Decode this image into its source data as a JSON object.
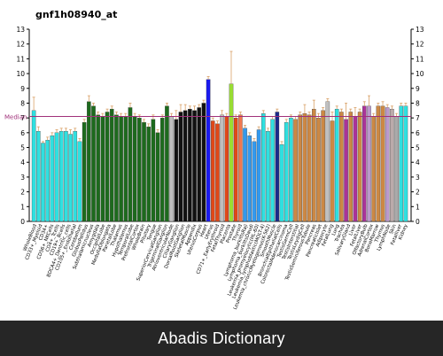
{
  "footer": {
    "text": "Abadis Dictionary"
  },
  "chart_data": {
    "type": "bar",
    "title": "gnf1h08940_at",
    "ylim": [
      0,
      13
    ],
    "yticks": [
      0,
      1,
      2,
      3,
      4,
      5,
      6,
      7,
      8,
      9,
      10,
      11,
      12,
      13
    ],
    "median": {
      "label": "Median",
      "value": 7.1,
      "color": "#a0307a"
    },
    "grid": false,
    "legend": "none",
    "categories": [
      "WholeBlood",
      "CD33+_Myeloid",
      "CD34+",
      "CD56+_NKCells",
      "CD4+_Tcells",
      "CD8+_Tcells",
      "CD19+_Bcells",
      "BDCA4+_DentriticCells",
      "CD105+_Endothelial",
      "CD71+_EarlyErythroid",
      "Cerebellum",
      "CerebellumPeduncles",
      "GlobusPallidus",
      "Caudatenucleus",
      "Subthalamicnucleus",
      "Amygdala",
      "OccipitalLobe",
      "Hypothalamus",
      "MedullaOblongata",
      "ParietalLobe",
      "Pons",
      "Thalamus",
      "CingulateCortex",
      "TemporalLobe",
      "PrefrontalCortex",
      "WholeBrain",
      "SpinalCord",
      "FetalBrain",
      "Pituitary",
      "Tongue",
      "SuperiorCervicalGanglion",
      "TrigeminalGanglion",
      "CiliaryGanglion",
      "DorsalRootGanglion",
      "AtrioventricularNode",
      "SkeletalMuscle",
      "Appendix",
      "UterusCorpus",
      "Heart",
      "Uterus",
      "CD71+_EarlyErythroid_2",
      "FetalThyroid",
      "Placenta",
      "Prostate",
      "Thyroid",
      "Lymphoma_burkittsRaji",
      "Lymphoma_burkittsDaudi",
      "Leukemia_promyelocytic-HL60",
      "Leukemia_lymphoblastic-MOLT4",
      "Leukemia_chronicMyelogenous-K562",
      "Lymphoma_B",
      "TemporalLobe_2",
      "SmoothMuscle",
      "BronchialEpithelialCells",
      "ColorectalAdenocarcinoma",
      "Testis",
      "TestisGermCell",
      "TestisInterstitial",
      "TestisLeydigCell",
      "TestisSeminiferousTubule",
      "Tonsil",
      "Pancreas",
      "PancreaticIslet",
      "Adipocyte",
      "Ovary",
      "Uterus_2",
      "FetalLung",
      "Lung",
      "Trachea",
      "SalivaryGland",
      "Liver",
      "FetalLiver",
      "OlfactoryBulb",
      "AdrenalCortex",
      "AdrenalGland",
      "BoneMarrow",
      "Thymus",
      "LymphNode",
      "Skin",
      "Kidney",
      "FetalKidney",
      "Retina"
    ],
    "tick_labels": [
      "WholeBlood",
      "CD33+_Myeloid",
      "CD34+",
      "CD56+_NKCells",
      "CD4+_Tcells",
      "CD19+_Bcells",
      "BDCA4+_Dentritic_cells",
      "CD105+_Endothelial",
      "Cerebellum",
      "GlobusPallidus",
      "Subthalamicnucleus",
      "Amygdala",
      "OccipitalLobe",
      "MedullaOblongata",
      "ParietalLobe",
      "Thalamus",
      "Hypothalamus",
      "TemporalLobe",
      "PrefrontalCortex",
      "WholeBrain",
      "Pituitary",
      "Tongue",
      "SuperiorCervicalGanglion",
      "TrigeminalGanglion",
      "AtrioventricularNode",
      "CiliaryGanglion",
      "DorsalRootGanglion",
      "SkeletalMuscle",
      "Appendix",
      "UterusCorpus",
      "Heart",
      "Uterus",
      "CD71+_EarlyErythroid",
      "FetalThyroid",
      "Placenta",
      "Prostate",
      "Thyroid",
      "Lymphoma_burkittsRaji",
      "Lymphoma_burkittsDaudi",
      "Leukemia_promyelocytic(HL-60)",
      "Leukemia_lymphoblastic(MOLT-4)",
      "Leukemia_chronicMyelogenous(K-562)",
      "SmoothMuscle",
      "BronchialEpithelialCells",
      "ColorectalAdenocarcinoma",
      "TestisGermCell",
      "TestisInterstitial",
      "TestisLeydigCell",
      "TestisSeminiferousTubule",
      "Pancreas",
      "PancreaticIslet",
      "Adipocyte",
      "FetalLung",
      "Lung",
      "Trachea",
      "SalivaryGland",
      "Liver",
      "FetalLiver",
      "OlfactoryBulb",
      "AdrenalCortex",
      "BoneMarrow",
      "Thymus",
      "LymphNode",
      "Skin",
      "Fetalliver",
      "Kidney"
    ],
    "values": [
      7.5,
      6.1,
      5.3,
      5.5,
      5.8,
      6.0,
      6.1,
      6.1,
      5.9,
      6.1,
      5.4,
      6.7,
      8.1,
      7.8,
      7.2,
      7.1,
      7.4,
      7.6,
      7.2,
      7.1,
      7.1,
      7.7,
      7.1,
      7.0,
      6.7,
      6.4,
      6.9,
      6.0,
      7.0,
      7.8,
      7.1,
      6.9,
      7.4,
      7.5,
      7.6,
      7.5,
      7.7,
      8.0,
      9.6,
      6.8,
      6.6,
      7.2,
      7.1,
      9.3,
      7.0,
      7.2,
      6.3,
      5.8,
      5.4,
      6.2,
      7.3,
      6.1,
      6.9,
      7.4,
      5.2,
      6.7,
      7.0,
      6.9,
      7.2,
      7.3,
      7.2,
      7.6,
      7.0,
      7.5,
      8.1,
      6.8,
      7.6,
      7.4,
      6.9,
      7.4,
      7.1,
      7.4,
      7.8,
      7.8,
      7.1,
      7.8,
      7.8,
      7.7,
      7.6,
      7.1,
      7.8,
      7.8
    ],
    "errors": [
      0.9,
      0.3,
      0.1,
      0.2,
      0.2,
      0.2,
      0.2,
      0.2,
      0.3,
      0.2,
      0.2,
      0.2,
      0.4,
      0.2,
      0.2,
      0.2,
      0.2,
      0.2,
      0.2,
      0.2,
      0.2,
      0.3,
      0.2,
      0.2,
      0.2,
      0.2,
      0.3,
      0.2,
      0.2,
      0.2,
      0.2,
      0.6,
      0.5,
      0.4,
      0.2,
      0.3,
      0.2,
      0.2,
      0.2,
      0.2,
      0.2,
      0.3,
      0.2,
      2.2,
      0.2,
      0.2,
      0.2,
      0.2,
      0.2,
      0.2,
      0.2,
      0.2,
      0.2,
      0.2,
      0.2,
      0.2,
      0.2,
      0.2,
      0.2,
      0.6,
      0.2,
      0.6,
      0.3,
      0.2,
      0.2,
      0.6,
      0.2,
      0.2,
      1.1,
      0.2,
      0.6,
      0.2,
      0.3,
      0.7,
      0.2,
      0.2,
      0.3,
      0.2,
      0.2,
      0.2,
      0.2,
      0.2
    ],
    "colors": [
      "#2fe0e0",
      "#2fe0e0",
      "#2fe0e0",
      "#2fe0e0",
      "#2fe0e0",
      "#2fe0e0",
      "#2fe0e0",
      "#2fe0e0",
      "#2fe0e0",
      "#2fe0e0",
      "#2fe0e0",
      "#1d6a1d",
      "#1d6a1d",
      "#1d6a1d",
      "#1d6a1d",
      "#1d6a1d",
      "#1d6a1d",
      "#1d6a1d",
      "#1d6a1d",
      "#1d6a1d",
      "#1d6a1d",
      "#1d6a1d",
      "#1d6a1d",
      "#1d6a1d",
      "#1d6a1d",
      "#1d6a1d",
      "#1d6a1d",
      "#1d6a1d",
      "#1d6a1d",
      "#1d6a1d",
      "#bfbfbf",
      "#111111",
      "#111111",
      "#111111",
      "#111111",
      "#111111",
      "#111111",
      "#111111",
      "#1a1aee",
      "#e04818",
      "#e04818",
      "#bfbfbf",
      "#e04818",
      "#99dd33",
      "#e04818",
      "#f07850",
      "#3399ee",
      "#3399ee",
      "#3399ee",
      "#3399ee",
      "#2fe0e0",
      "#2fe0e0",
      "#2fe0e0",
      "#1a2a8a",
      "#2fe0e0",
      "#2fe0e0",
      "#2fe0e0",
      "#cc8844",
      "#cc8844",
      "#cc8844",
      "#cc8844",
      "#cc8844",
      "#cc8844",
      "#cc8844",
      "#bfbfbf",
      "#cc8844",
      "#2fe0e0",
      "#cc8844",
      "#aa3399",
      "#cc8844",
      "#aa3399",
      "#cc8844",
      "#aa3399",
      "#bb99cc",
      "#cc8844",
      "#cc8844",
      "#cc8844",
      "#bb99cc",
      "#bbaaaa",
      "#aaaaaa",
      "#2fe0e0",
      "#2fe0e0"
    ]
  }
}
